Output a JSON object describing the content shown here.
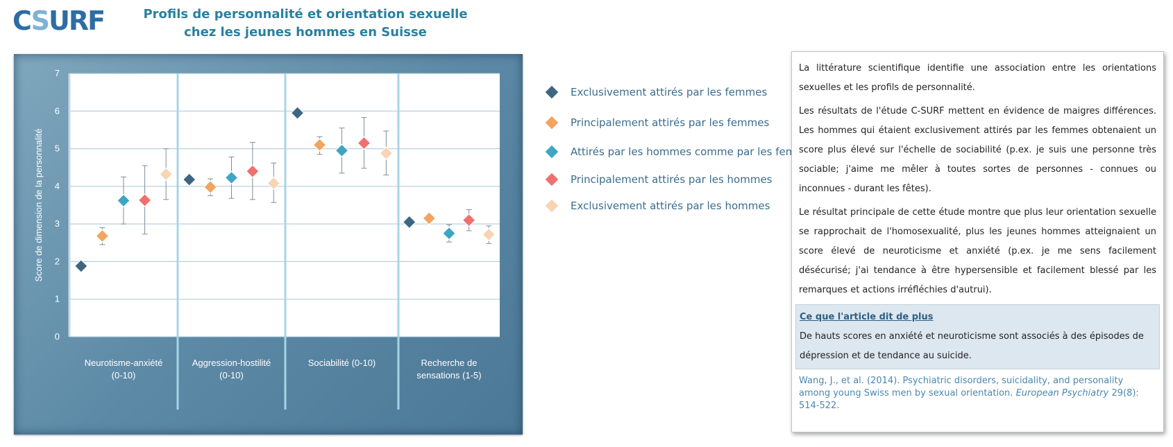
{
  "logo": {
    "part1": "C",
    "part2": "S",
    "part3": "URF"
  },
  "title": {
    "line1": "Profils de personnalité et orientation sexuelle",
    "line2": "chez les jeunes hommes en Suisse"
  },
  "colors": {
    "excl_femmes": "#3e6682",
    "princ_femmes": "#f2a460",
    "deux": "#3ea6c3",
    "princ_hommes": "#f07070",
    "excl_hommes": "#f8d4b4"
  },
  "chart_data": {
    "type": "scatter",
    "ylabel": "Score de dimension de la personnalité",
    "ylim": [
      0,
      7
    ],
    "yticks": [
      "0",
      "1",
      "2",
      "3",
      "4",
      "5",
      "6",
      "7"
    ],
    "categories": [
      {
        "line1": "Neurotisme-anxiété",
        "line2": "(0-10)"
      },
      {
        "line1": "Aggression-hostilité",
        "line2": "(0-10)"
      },
      {
        "line1": "Sociabilité (0-10)",
        "line2": ""
      },
      {
        "line1": "Recherche de",
        "line2": "sensations (1-5)"
      }
    ],
    "series": [
      {
        "name": "Exclusivement attirés par les femmes",
        "color_key": "excl_femmes",
        "values": [
          1.88,
          4.18,
          5.95,
          3.05
        ],
        "err_low": [
          null,
          null,
          null,
          null
        ],
        "err_high": [
          null,
          null,
          null,
          null
        ]
      },
      {
        "name": "Principalement attirés par les femmes",
        "color_key": "princ_femmes",
        "values": [
          2.68,
          3.98,
          5.1,
          3.15
        ],
        "err_low": [
          2.45,
          3.75,
          4.85,
          3.15
        ],
        "err_high": [
          2.9,
          4.2,
          5.32,
          3.15
        ]
      },
      {
        "name": "Attirés par les hommes comme par les femmes",
        "color_key": "deux",
        "values": [
          3.62,
          4.23,
          4.95,
          2.75
        ],
        "err_low": [
          3.0,
          3.68,
          4.35,
          2.52
        ],
        "err_high": [
          4.25,
          4.78,
          5.55,
          2.98
        ]
      },
      {
        "name": "Principalement attirés par les hommes",
        "color_key": "princ_hommes",
        "values": [
          3.63,
          4.4,
          5.15,
          3.1
        ],
        "err_low": [
          2.73,
          3.65,
          4.48,
          2.82
        ],
        "err_high": [
          4.55,
          5.17,
          5.83,
          3.38
        ]
      },
      {
        "name": "Exclusivement attirés par les hommes",
        "color_key": "excl_hommes",
        "values": [
          4.32,
          4.08,
          4.88,
          2.72
        ],
        "err_low": [
          3.65,
          3.57,
          4.3,
          2.48
        ],
        "err_high": [
          5.0,
          4.62,
          5.47,
          2.95
        ]
      }
    ],
    "legend": "right",
    "grid": true
  },
  "text": {
    "p1": "La littérature scientifique identifie une association entre les orientations sexuelles et les profils de personnalité.",
    "p2": "Les résultats de l'étude C-SURF mettent en évidence de maigres différences. Les hommes qui étaient exclusivement attirés par les femmes obtenaient un score plus élevé sur l'échelle de sociabilité (p.ex. je suis une personne très sociable; j'aime me mêler à toutes sortes de personnes - connues ou inconnues - durant les fêtes).",
    "p3": "Le résultat principale de cette étude montre que plus leur orientation sexuelle se rapprochait de l'homosexualité, plus les jeunes hommes atteignaient un score élevé de neuroticisme et anxiété (p.ex. je me sens facilement désécurisé; j'ai tendance à être hypersensible et facilement blessé par les remarques et actions irréfléchies d'autrui).",
    "highlight_title": "Ce que l'article dit de plus",
    "highlight_body": "De hauts scores en anxiété et neuroticisme sont associés à des épisodes de dépression et de tendance au suicide.",
    "ref_authors": "Wang, J., et al. (2014). Psychiatric disorders, suicidality, and personality among young Swiss men by sexual orientation.",
    "ref_journal": "European Psychiatry",
    "ref_tail": "29(8): 514-522."
  }
}
